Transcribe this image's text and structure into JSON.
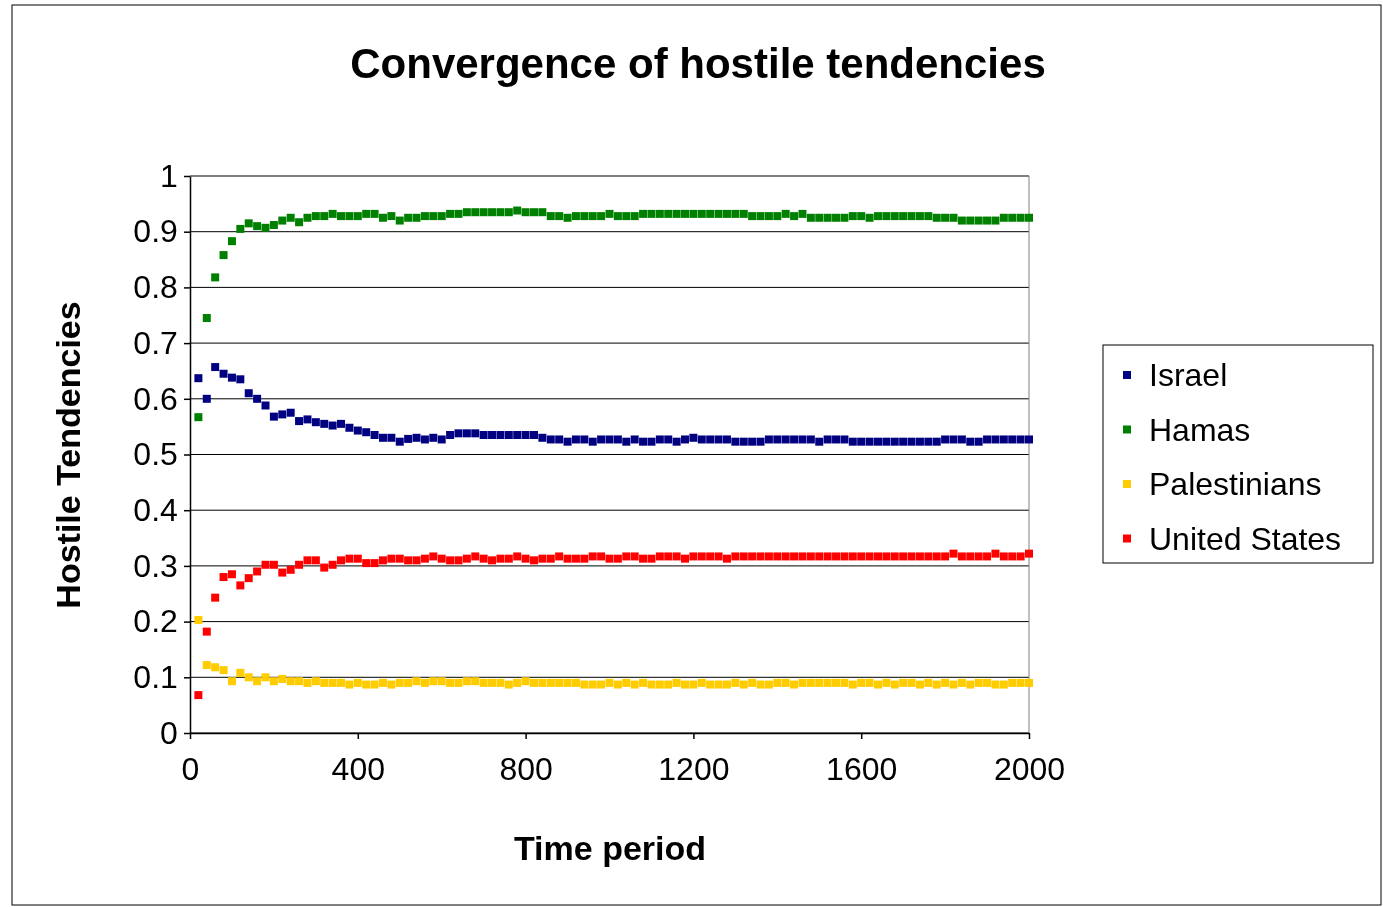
{
  "chart_data": {
    "type": "scatter",
    "title": "Convergence of hostile tendencies",
    "xlabel": "Time period",
    "ylabel": "Hostile Tendencies",
    "x": [
      20,
      40,
      60,
      80,
      100,
      120,
      140,
      160,
      180,
      200,
      220,
      240,
      260,
      280,
      300,
      320,
      340,
      360,
      380,
      400,
      420,
      440,
      460,
      480,
      500,
      520,
      540,
      560,
      580,
      600,
      620,
      640,
      660,
      680,
      700,
      720,
      740,
      760,
      780,
      800,
      820,
      840,
      860,
      880,
      900,
      920,
      940,
      960,
      980,
      1000,
      1020,
      1040,
      1060,
      1080,
      1100,
      1120,
      1140,
      1160,
      1180,
      1200,
      1220,
      1240,
      1260,
      1280,
      1300,
      1320,
      1340,
      1360,
      1380,
      1400,
      1420,
      1440,
      1460,
      1480,
      1500,
      1520,
      1540,
      1560,
      1580,
      1600,
      1620,
      1640,
      1660,
      1680,
      1700,
      1720,
      1740,
      1760,
      1780,
      1800,
      1820,
      1840,
      1860,
      1880,
      1900,
      1920,
      1940,
      1960,
      1980,
      2000
    ],
    "series": [
      {
        "name": "Israel",
        "color": "#000080",
        "values": [
          0.637,
          0.6,
          0.657,
          0.645,
          0.638,
          0.635,
          0.61,
          0.6,
          0.588,
          0.568,
          0.572,
          0.575,
          0.56,
          0.563,
          0.558,
          0.555,
          0.552,
          0.555,
          0.548,
          0.543,
          0.54,
          0.535,
          0.53,
          0.53,
          0.523,
          0.528,
          0.53,
          0.527,
          0.53,
          0.527,
          0.535,
          0.538,
          0.538,
          0.538,
          0.535,
          0.535,
          0.535,
          0.535,
          0.535,
          0.535,
          0.535,
          0.53,
          0.527,
          0.527,
          0.523,
          0.527,
          0.527,
          0.523,
          0.527,
          0.527,
          0.527,
          0.523,
          0.527,
          0.523,
          0.523,
          0.527,
          0.527,
          0.523,
          0.527,
          0.53,
          0.527,
          0.527,
          0.527,
          0.527,
          0.523,
          0.523,
          0.523,
          0.523,
          0.527,
          0.527,
          0.527,
          0.527,
          0.527,
          0.527,
          0.523,
          0.527,
          0.527,
          0.527,
          0.523,
          0.523,
          0.523,
          0.523,
          0.523,
          0.523,
          0.523,
          0.523,
          0.523,
          0.523,
          0.523,
          0.527,
          0.527,
          0.527,
          0.523,
          0.523,
          0.527,
          0.527,
          0.527,
          0.527,
          0.527,
          0.527
        ]
      },
      {
        "name": "Hamas",
        "color": "#008000",
        "values": [
          0.567,
          0.745,
          0.818,
          0.858,
          0.883,
          0.905,
          0.915,
          0.91,
          0.907,
          0.912,
          0.92,
          0.925,
          0.917,
          0.925,
          0.928,
          0.928,
          0.932,
          0.928,
          0.928,
          0.928,
          0.932,
          0.932,
          0.925,
          0.928,
          0.92,
          0.925,
          0.925,
          0.928,
          0.928,
          0.928,
          0.932,
          0.932,
          0.935,
          0.935,
          0.935,
          0.935,
          0.935,
          0.935,
          0.938,
          0.935,
          0.935,
          0.935,
          0.928,
          0.928,
          0.925,
          0.928,
          0.928,
          0.928,
          0.928,
          0.932,
          0.928,
          0.928,
          0.928,
          0.932,
          0.932,
          0.932,
          0.932,
          0.932,
          0.932,
          0.932,
          0.932,
          0.932,
          0.932,
          0.932,
          0.932,
          0.932,
          0.928,
          0.928,
          0.928,
          0.928,
          0.932,
          0.928,
          0.932,
          0.925,
          0.925,
          0.925,
          0.925,
          0.925,
          0.928,
          0.928,
          0.925,
          0.928,
          0.928,
          0.928,
          0.928,
          0.928,
          0.928,
          0.928,
          0.925,
          0.925,
          0.925,
          0.92,
          0.92,
          0.92,
          0.92,
          0.92,
          0.925,
          0.925,
          0.925,
          0.925
        ]
      },
      {
        "name": "Palestinians",
        "color": "#ffcc00",
        "values": [
          0.203,
          0.122,
          0.118,
          0.113,
          0.093,
          0.108,
          0.1,
          0.093,
          0.1,
          0.093,
          0.097,
          0.093,
          0.093,
          0.09,
          0.093,
          0.09,
          0.09,
          0.09,
          0.087,
          0.09,
          0.087,
          0.087,
          0.09,
          0.087,
          0.09,
          0.09,
          0.093,
          0.09,
          0.093,
          0.093,
          0.09,
          0.09,
          0.093,
          0.093,
          0.09,
          0.09,
          0.09,
          0.087,
          0.09,
          0.093,
          0.09,
          0.09,
          0.09,
          0.09,
          0.09,
          0.09,
          0.087,
          0.087,
          0.087,
          0.09,
          0.087,
          0.09,
          0.087,
          0.09,
          0.087,
          0.087,
          0.087,
          0.09,
          0.087,
          0.087,
          0.09,
          0.087,
          0.087,
          0.087,
          0.09,
          0.087,
          0.09,
          0.087,
          0.087,
          0.09,
          0.09,
          0.087,
          0.09,
          0.09,
          0.09,
          0.09,
          0.09,
          0.09,
          0.087,
          0.09,
          0.09,
          0.087,
          0.09,
          0.087,
          0.09,
          0.09,
          0.087,
          0.09,
          0.087,
          0.09,
          0.087,
          0.09,
          0.087,
          0.09,
          0.09,
          0.087,
          0.087,
          0.09,
          0.09,
          0.09
        ]
      },
      {
        "name": "United States",
        "color": "#ff0000",
        "values": [
          0.068,
          0.182,
          0.243,
          0.28,
          0.285,
          0.265,
          0.278,
          0.29,
          0.302,
          0.302,
          0.288,
          0.293,
          0.302,
          0.31,
          0.31,
          0.297,
          0.302,
          0.31,
          0.313,
          0.313,
          0.305,
          0.305,
          0.31,
          0.313,
          0.313,
          0.31,
          0.31,
          0.313,
          0.317,
          0.313,
          0.31,
          0.31,
          0.313,
          0.317,
          0.313,
          0.31,
          0.313,
          0.313,
          0.317,
          0.313,
          0.31,
          0.313,
          0.313,
          0.317,
          0.313,
          0.313,
          0.313,
          0.317,
          0.317,
          0.313,
          0.313,
          0.317,
          0.317,
          0.313,
          0.313,
          0.317,
          0.317,
          0.317,
          0.313,
          0.317,
          0.317,
          0.317,
          0.317,
          0.313,
          0.317,
          0.317,
          0.317,
          0.317,
          0.317,
          0.317,
          0.317,
          0.317,
          0.317,
          0.317,
          0.317,
          0.317,
          0.317,
          0.317,
          0.317,
          0.317,
          0.317,
          0.317,
          0.317,
          0.317,
          0.317,
          0.317,
          0.317,
          0.317,
          0.317,
          0.317,
          0.322,
          0.317,
          0.317,
          0.317,
          0.317,
          0.322,
          0.317,
          0.317,
          0.317,
          0.322
        ]
      }
    ],
    "xlim": [
      0,
      2000
    ],
    "xticks": [
      0,
      400,
      800,
      1200,
      1600,
      2000
    ],
    "ylim": [
      0,
      1
    ],
    "yticks": [
      0,
      0.1,
      0.2,
      0.3,
      0.4,
      0.5,
      0.6,
      0.7,
      0.8,
      0.9,
      1
    ],
    "grid": "y",
    "legend": "right",
    "marker": "square"
  }
}
